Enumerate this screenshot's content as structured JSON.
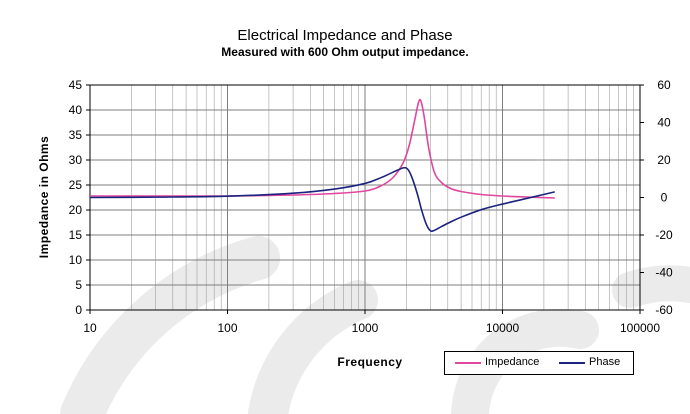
{
  "colors": {
    "impedance": "#e0479e",
    "phase": "#1a237e",
    "grid_major": "#7f7f7f",
    "grid_minor": "#a0a0a0"
  },
  "chart_data": {
    "type": "line",
    "title": "Electrical Impedance and Phase",
    "subtitle": "Measured with 600 Ohm output impedance.",
    "xlabel": "Frequency",
    "ylabel": "Impedance in Ohms",
    "x_scale": "log",
    "xlim": [
      10,
      100000
    ],
    "ylim": [
      0,
      45
    ],
    "y2lim": [
      -60,
      60
    ],
    "x_ticks": [
      "10",
      "100",
      "1000",
      "10000",
      "100000"
    ],
    "y_ticks": [
      "0",
      "5",
      "10",
      "15",
      "20",
      "25",
      "30",
      "35",
      "40",
      "45"
    ],
    "y2_ticks": [
      "-60",
      "-40",
      "-20",
      "0",
      "20",
      "40",
      "60"
    ],
    "grid": true,
    "legend_position": "bottom-right",
    "series": [
      {
        "name": "Impedance",
        "axis": "left",
        "x": [
          10,
          30,
          100,
          300,
          600,
          1000,
          1300,
          1600,
          1900,
          2100,
          2300,
          2450,
          2550,
          2700,
          2900,
          3200,
          3600,
          4200,
          5000,
          7000,
          10000,
          15000,
          24000
        ],
        "y": [
          22.8,
          22.8,
          22.8,
          23.0,
          23.3,
          23.8,
          24.8,
          26.5,
          29.5,
          33.0,
          38.0,
          41.5,
          41.8,
          38.5,
          32.5,
          27.5,
          25.5,
          24.3,
          23.7,
          23.1,
          22.8,
          22.6,
          22.4
        ]
      },
      {
        "name": "Phase",
        "axis": "right",
        "x": [
          10,
          30,
          100,
          300,
          600,
          1000,
          1300,
          1600,
          1900,
          2050,
          2200,
          2400,
          2600,
          2800,
          3000,
          3200,
          3600,
          4200,
          5000,
          7000,
          10000,
          15000,
          24000
        ],
        "y": [
          0.0,
          0.2,
          0.7,
          2.3,
          4.5,
          7.5,
          10.5,
          13.5,
          15.8,
          15.0,
          10.5,
          2.0,
          -7.5,
          -14.5,
          -17.8,
          -17.5,
          -15.5,
          -13.0,
          -10.5,
          -6.5,
          -3.5,
          -0.5,
          3.0
        ]
      }
    ]
  }
}
